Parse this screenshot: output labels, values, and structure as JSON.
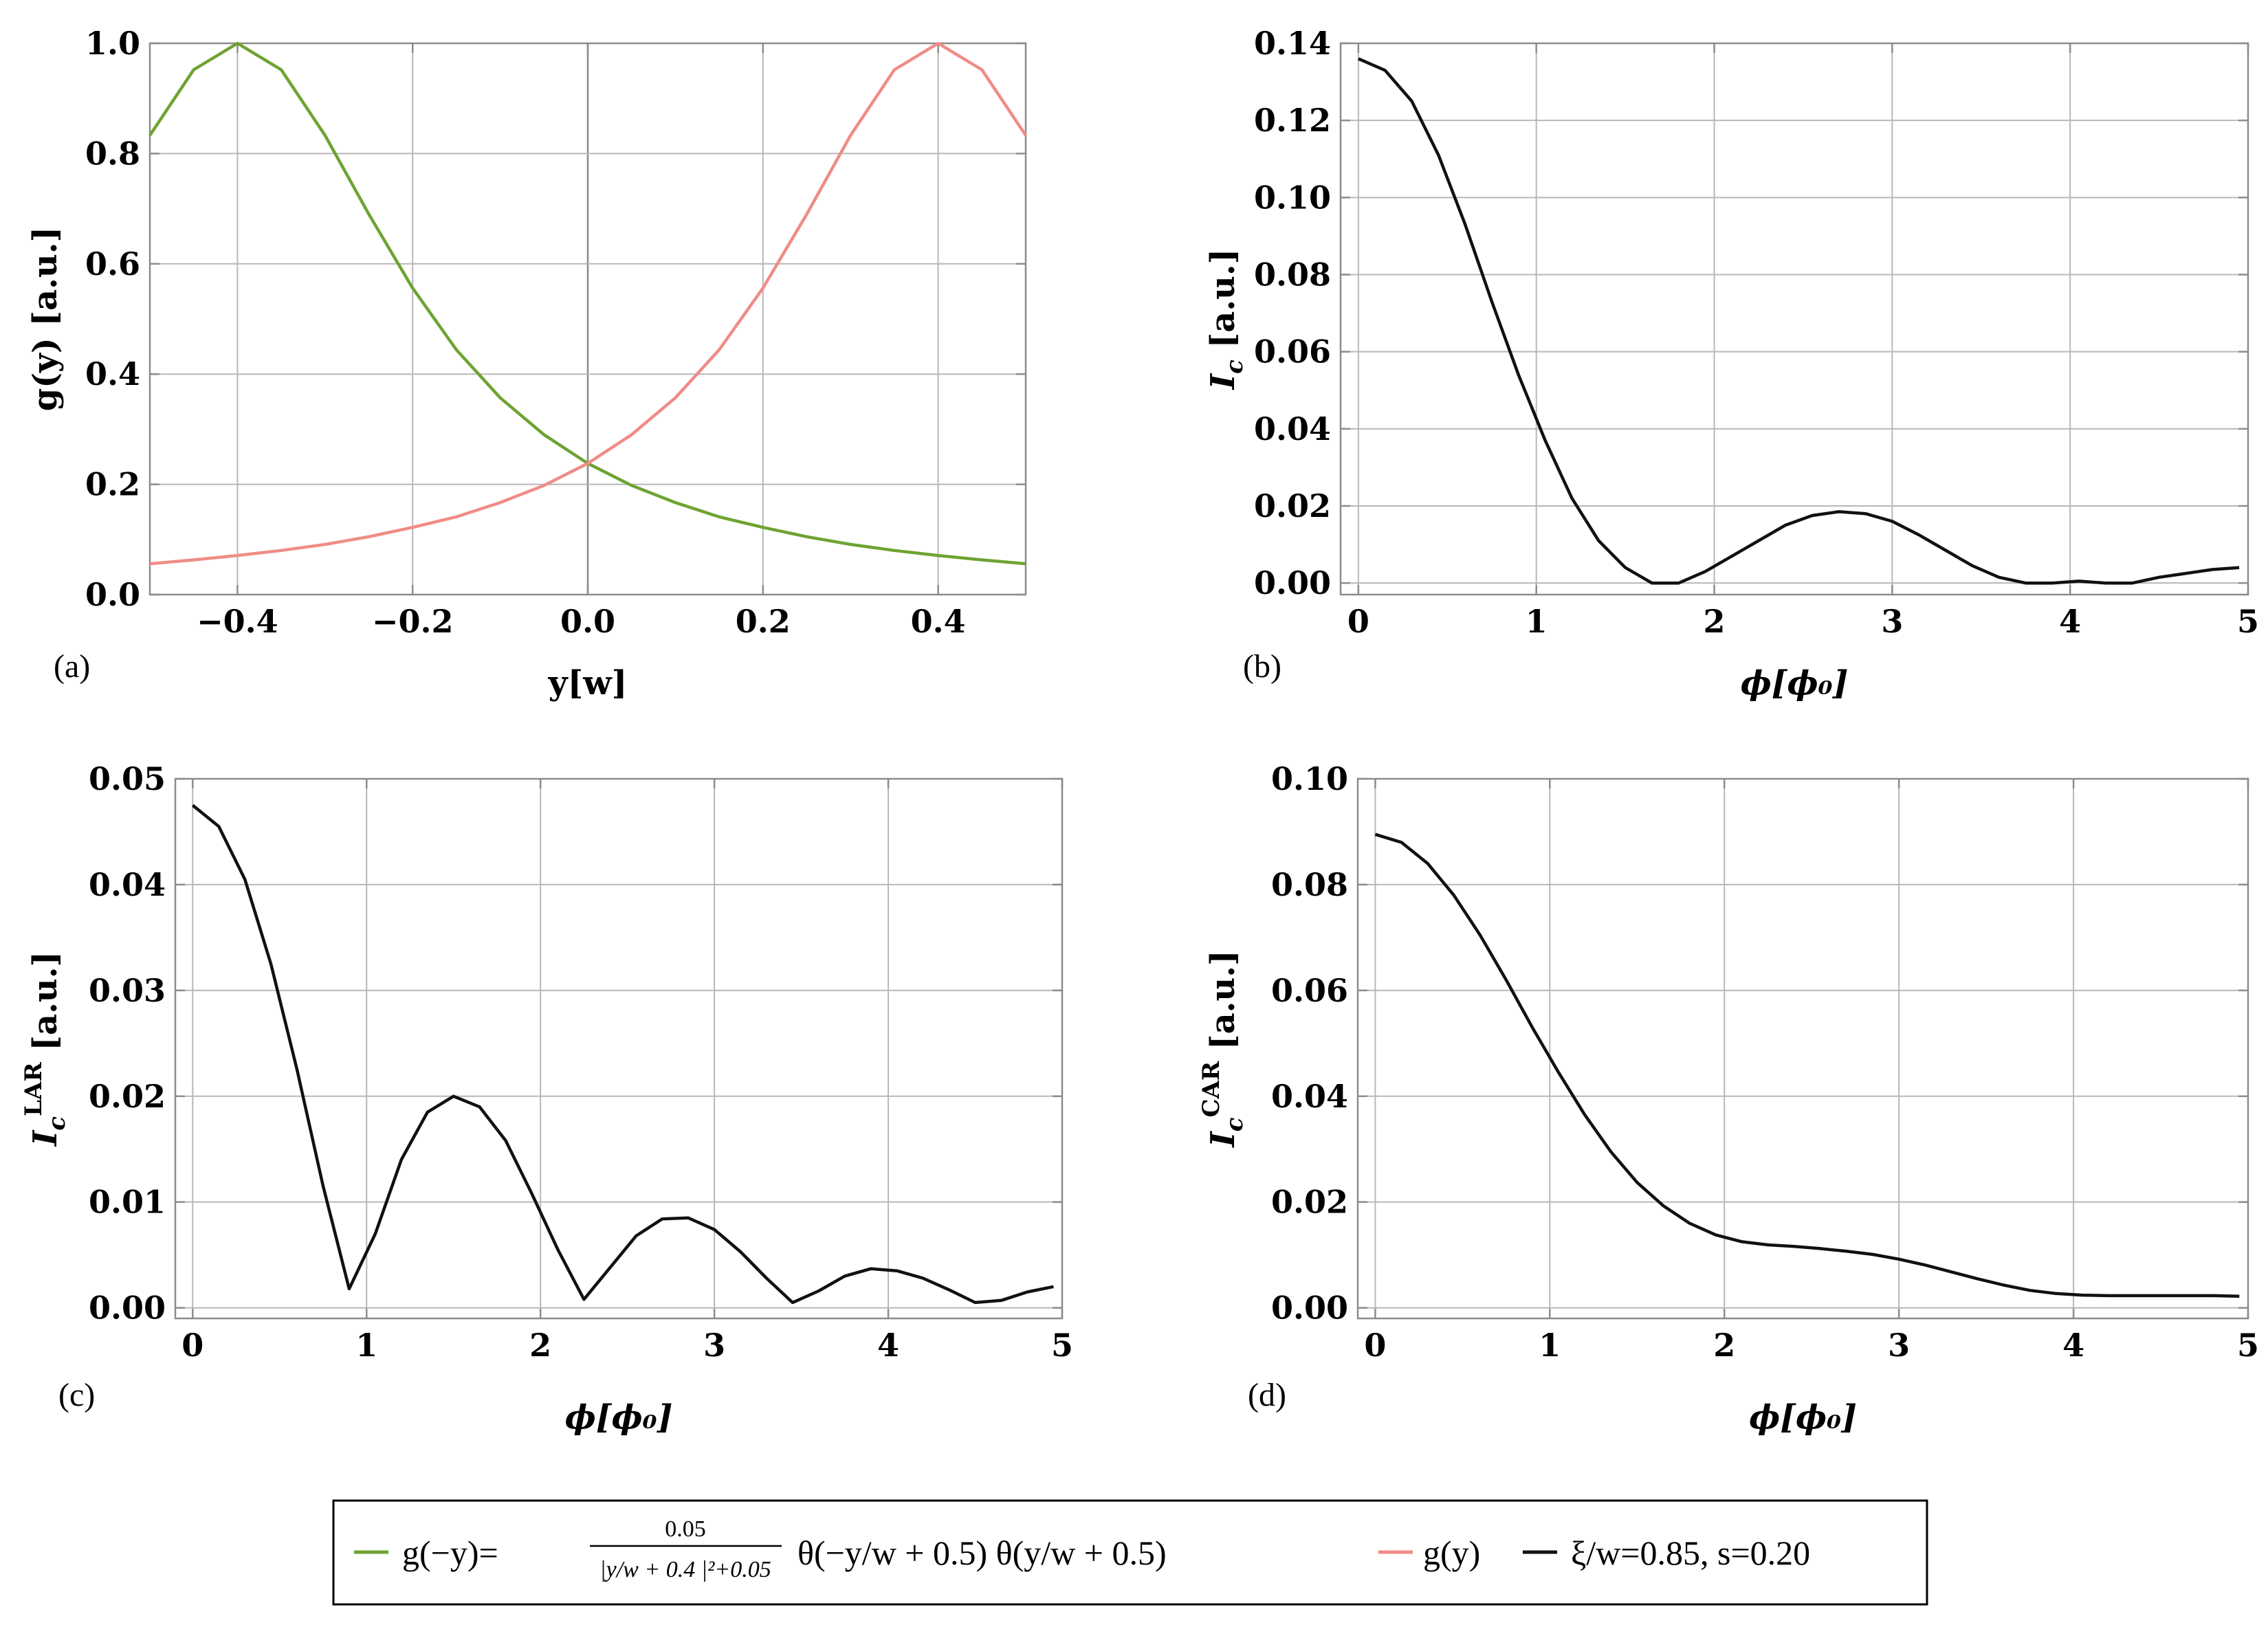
{
  "colors": {
    "green": "#6ea332",
    "pink": "#f08c86",
    "black": "#111111"
  },
  "chart_data": [
    {
      "panel": "(a)",
      "type": "line",
      "xlabel": "y[w]",
      "ylabel": "g(y) [a.u.]",
      "xlim": [
        -0.5,
        0.5
      ],
      "ylim": [
        0,
        1.0
      ],
      "xticks": [
        -0.4,
        -0.2,
        0.0,
        0.2,
        0.4
      ],
      "xtick_labels": [
        "−0.4",
        "−0.2",
        "0.0",
        "0.2",
        "0.4"
      ],
      "yticks": [
        0,
        0.2,
        0.4,
        0.6,
        0.8,
        1.0
      ],
      "ytick_labels": [
        "0.0",
        "0.2",
        "0.4",
        "0.6",
        "0.8",
        "1.0"
      ],
      "series": [
        {
          "name": "g(−y)",
          "color": "#6ea332",
          "x": [
            -0.5,
            -0.45,
            -0.4,
            -0.35,
            -0.3,
            -0.25,
            -0.2,
            -0.15,
            -0.1,
            -0.05,
            0,
            0.05,
            0.1,
            0.15,
            0.2,
            0.25,
            0.3,
            0.35,
            0.4,
            0.45,
            0.5
          ],
          "y": [
            0.833,
            0.952,
            1.0,
            0.952,
            0.833,
            0.69,
            0.556,
            0.444,
            0.357,
            0.29,
            0.238,
            0.198,
            0.167,
            0.141,
            0.122,
            0.105,
            0.091,
            0.08,
            0.071,
            0.063,
            0.056
          ]
        },
        {
          "name": "g(y)",
          "color": "#f08c86",
          "x": [
            -0.5,
            -0.45,
            -0.4,
            -0.35,
            -0.3,
            -0.25,
            -0.2,
            -0.15,
            -0.1,
            -0.05,
            0,
            0.05,
            0.1,
            0.15,
            0.2,
            0.25,
            0.3,
            0.35,
            0.4,
            0.45,
            0.5
          ],
          "y": [
            0.056,
            0.063,
            0.071,
            0.08,
            0.091,
            0.105,
            0.122,
            0.141,
            0.167,
            0.198,
            0.238,
            0.29,
            0.357,
            0.444,
            0.556,
            0.69,
            0.833,
            0.952,
            1.0,
            0.952,
            0.833
          ]
        }
      ]
    },
    {
      "panel": "(b)",
      "type": "line",
      "xlabel": "ϕ[ϕ₀]",
      "ylabel": "I_c [a.u.]",
      "ylabel_main": "I",
      "ylabel_sub": "c",
      "ylabel_sup": "",
      "ylabel_tail": " [a.u.]",
      "xlim": [
        -0.1,
        5.0
      ],
      "ylim": [
        -0.003,
        0.14
      ],
      "xticks": [
        0,
        1,
        2,
        3,
        4,
        5
      ],
      "xtick_labels": [
        "0",
        "1",
        "2",
        "3",
        "4",
        "5"
      ],
      "yticks": [
        0,
        0.02,
        0.04,
        0.06,
        0.08,
        0.1,
        0.12,
        0.14
      ],
      "ytick_labels": [
        "0.00",
        "0.02",
        "0.04",
        "0.06",
        "0.08",
        "0.10",
        "0.12",
        "0.14"
      ],
      "series": [
        {
          "name": "ξ/w=0.85, s=0.20",
          "color": "#111111",
          "x": [
            0,
            0.15,
            0.3,
            0.45,
            0.6,
            0.75,
            0.9,
            1.05,
            1.2,
            1.35,
            1.5,
            1.65,
            1.8,
            1.95,
            2.1,
            2.25,
            2.4,
            2.55,
            2.7,
            2.85,
            3.0,
            3.15,
            3.3,
            3.45,
            3.6,
            3.75,
            3.9,
            4.05,
            4.2,
            4.35,
            4.5,
            4.65,
            4.8,
            4.95
          ],
          "y": [
            0.136,
            0.133,
            0.125,
            0.111,
            0.093,
            0.073,
            0.054,
            0.037,
            0.022,
            0.011,
            0.004,
            0.0,
            0.0,
            0.003,
            0.007,
            0.011,
            0.015,
            0.0175,
            0.0185,
            0.018,
            0.016,
            0.0125,
            0.0085,
            0.0045,
            0.0015,
            0.0,
            0.0,
            0.0005,
            0.0,
            0.0,
            0.0015,
            0.0025,
            0.0035,
            0.004
          ]
        }
      ]
    },
    {
      "panel": "(c)",
      "type": "line",
      "xlabel": "ϕ[ϕ₀]",
      "ylabel": "I_c^LAR [a.u.]",
      "ylabel_main": "I",
      "ylabel_sub": "c",
      "ylabel_sup": "LAR",
      "ylabel_tail": " [a.u.]",
      "xlim": [
        -0.1,
        5.0
      ],
      "ylim": [
        -0.001,
        0.05
      ],
      "xticks": [
        0,
        1,
        2,
        3,
        4,
        5
      ],
      "xtick_labels": [
        "0",
        "1",
        "2",
        "3",
        "4",
        "5"
      ],
      "yticks": [
        0,
        0.01,
        0.02,
        0.03,
        0.04,
        0.05
      ],
      "ytick_labels": [
        "0.00",
        "0.01",
        "0.02",
        "0.03",
        "0.04",
        "0.05"
      ],
      "series": [
        {
          "name": "ξ/w=0.85, s=0.20",
          "color": "#111111",
          "x": [
            0,
            0.15,
            0.3,
            0.45,
            0.6,
            0.75,
            0.9,
            1.05,
            1.2,
            1.35,
            1.5,
            1.65,
            1.8,
            1.95,
            2.1,
            2.25,
            2.4,
            2.55,
            2.7,
            2.85,
            3.0,
            3.15,
            3.3,
            3.45,
            3.6,
            3.75,
            3.9,
            4.05,
            4.2,
            4.35,
            4.5,
            4.65,
            4.8,
            4.95
          ],
          "y": [
            0.0475,
            0.0455,
            0.0405,
            0.0325,
            0.0225,
            0.0115,
            0.0018,
            0.007,
            0.014,
            0.0185,
            0.02,
            0.019,
            0.0158,
            0.0108,
            0.0055,
            0.0008,
            0.0038,
            0.0068,
            0.0084,
            0.0085,
            0.0074,
            0.0053,
            0.0028,
            0.0005,
            0.0016,
            0.003,
            0.0037,
            0.0035,
            0.0028,
            0.0017,
            0.0005,
            0.0007,
            0.0015,
            0.002
          ]
        }
      ]
    },
    {
      "panel": "(d)",
      "type": "line",
      "xlabel": "ϕ[ϕ₀]",
      "ylabel": "I_c^CAR [a.u.]",
      "ylabel_main": "I",
      "ylabel_sub": "c",
      "ylabel_sup": "CAR",
      "ylabel_tail": " [a.u.]",
      "xlim": [
        -0.1,
        5.0
      ],
      "ylim": [
        -0.002,
        0.1
      ],
      "xticks": [
        0,
        1,
        2,
        3,
        4,
        5
      ],
      "xtick_labels": [
        "0",
        "1",
        "2",
        "3",
        "4",
        "5"
      ],
      "yticks": [
        0,
        0.02,
        0.04,
        0.06,
        0.08,
        0.1
      ],
      "ytick_labels": [
        "0.00",
        "0.02",
        "0.04",
        "0.06",
        "0.08",
        "0.10"
      ],
      "series": [
        {
          "name": "ξ/w=0.85, s=0.20",
          "color": "#111111",
          "x": [
            0,
            0.15,
            0.3,
            0.45,
            0.6,
            0.75,
            0.9,
            1.05,
            1.2,
            1.35,
            1.5,
            1.65,
            1.8,
            1.95,
            2.1,
            2.25,
            2.4,
            2.55,
            2.7,
            2.85,
            3.0,
            3.15,
            3.3,
            3.45,
            3.6,
            3.75,
            3.9,
            4.05,
            4.2,
            4.35,
            4.5,
            4.65,
            4.8,
            4.95
          ],
          "y": [
            0.0895,
            0.088,
            0.084,
            0.078,
            0.0705,
            0.062,
            0.053,
            0.0445,
            0.0365,
            0.0295,
            0.0237,
            0.0193,
            0.016,
            0.0138,
            0.0125,
            0.0119,
            0.0116,
            0.0112,
            0.0107,
            0.0101,
            0.0092,
            0.0081,
            0.0068,
            0.0055,
            0.0043,
            0.0033,
            0.0027,
            0.0024,
            0.0023,
            0.0023,
            0.0023,
            0.0023,
            0.0023,
            0.0022
          ]
        }
      ]
    }
  ],
  "legend": {
    "entry1_name": "g(−y)=",
    "entry1_frac_num": "0.05",
    "entry1_frac_den": "|y/w + 0.4 |²+0.05",
    "entry1_rest": "θ(−y/w + 0.5) θ(y/w + 0.5)",
    "entry2": "g(y)",
    "entry3": "ξ/w=0.85, s=0.20"
  }
}
